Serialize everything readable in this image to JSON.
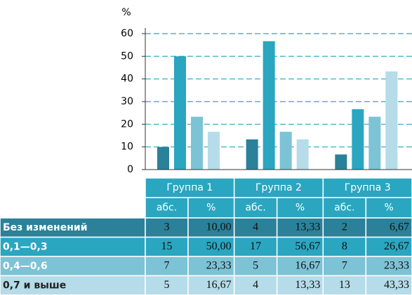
{
  "chart_data": {
    "type": "bar",
    "y_label": "%",
    "categories": [
      "Группа 1",
      "Группа 2",
      "Группа 3"
    ],
    "column_labels": [
      "абс.",
      "%"
    ],
    "series": [
      {
        "name": "Без изменений",
        "color": "#2b8199",
        "values": [
          10,
          13.33,
          6.67
        ],
        "value_labels": [
          "10,00",
          "13,33",
          "6,67"
        ],
        "counts": [
          3,
          4,
          2
        ]
      },
      {
        "name": "0,1—0,3",
        "color": "#2aa6c0",
        "values": [
          50,
          56.67,
          26.67
        ],
        "value_labels": [
          "50,00",
          "56,67",
          "26,67"
        ],
        "counts": [
          15,
          17,
          8
        ]
      },
      {
        "name": "0,4—0,6",
        "color": "#7cc3d6",
        "values": [
          23.33,
          16.67,
          23.33
        ],
        "value_labels": [
          "23,33",
          "16,67",
          "23,33"
        ],
        "counts": [
          7,
          5,
          7
        ]
      },
      {
        "name": "0,7 и выше",
        "color": "#b5dce8",
        "values": [
          16.67,
          13.33,
          43.33
        ],
        "value_labels": [
          "16,67",
          "13,33",
          "43,33"
        ],
        "counts": [
          5,
          4,
          13
        ]
      }
    ],
    "ylim": [
      0,
      60
    ],
    "yticks": [
      0,
      10,
      20,
      30,
      40,
      50,
      60
    ],
    "grid": true
  }
}
